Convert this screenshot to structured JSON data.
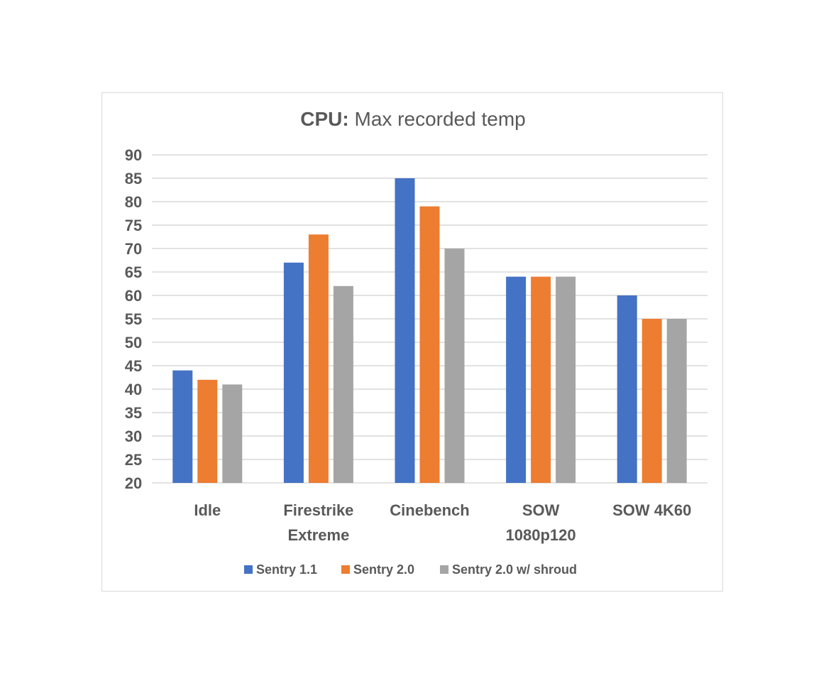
{
  "chart_data": {
    "type": "bar",
    "title_bold": "CPU:",
    "title_rest": " Max recorded temp",
    "categories": [
      [
        "Idle"
      ],
      [
        "Firestrike",
        "Extreme"
      ],
      [
        "Cinebench"
      ],
      [
        "SOW",
        "1080p120"
      ],
      [
        "SOW 4K60"
      ]
    ],
    "series": [
      {
        "name": "Sentry 1.1",
        "color": "#4472c4",
        "values": [
          44,
          67,
          85,
          64,
          60
        ]
      },
      {
        "name": "Sentry 2.0",
        "color": "#ed7d31",
        "values": [
          42,
          73,
          79,
          64,
          55
        ]
      },
      {
        "name": "Sentry 2.0 w/ shroud",
        "color": "#a5a5a5",
        "values": [
          41,
          62,
          70,
          64,
          55
        ]
      }
    ],
    "ylim": [
      20,
      90
    ],
    "ytick_step": 5,
    "grid": true,
    "legend_position": "bottom"
  }
}
